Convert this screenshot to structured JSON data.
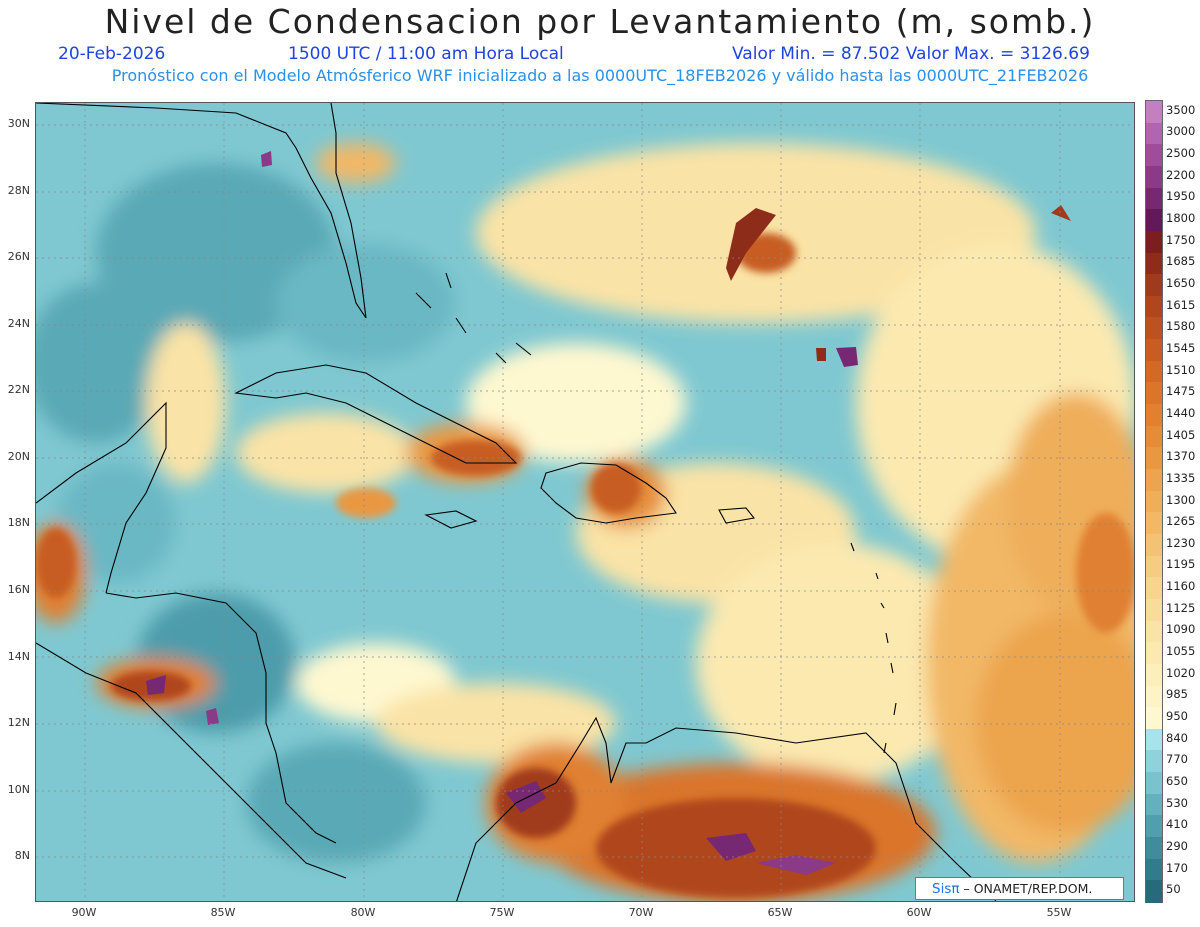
{
  "header": {
    "title": "Nivel de Condensacion por Levantamiento (m, somb.)",
    "date": "20-Feb-2026",
    "time": "1500 UTC / 11:00 am Hora Local",
    "stats": "Valor Min. = 87.502  Valor Max. = 3126.69",
    "model_info": "Pronóstico con el Modelo Atmósferico WRF inicializado a las 0000UTC_18FEB2026 y válido hasta las  0000UTC_21FEB2026"
  },
  "map": {
    "lat_labels": [
      "30N",
      "28N",
      "26N",
      "24N",
      "22N",
      "20N",
      "18N",
      "16N",
      "14N",
      "12N",
      "10N",
      "8N"
    ],
    "lon_labels": [
      "90W",
      "85W",
      "80W",
      "75W",
      "70W",
      "65W",
      "60W",
      "55W"
    ],
    "extent": {
      "lon_min": -92,
      "lon_max": -52.5,
      "lat_min": 6.6,
      "lat_max": 30.6
    },
    "credit_logo": "Sisπ",
    "credit_text": "– ONAMET/REP.DOM."
  },
  "colorbar": {
    "labels": [
      "3500",
      "3000",
      "2500",
      "2200",
      "1950",
      "1800",
      "1750",
      "1685",
      "1650",
      "1615",
      "1580",
      "1545",
      "1510",
      "1475",
      "1440",
      "1405",
      "1370",
      "1335",
      "1300",
      "1265",
      "1230",
      "1195",
      "1160",
      "1125",
      "1090",
      "1055",
      "1020",
      "985",
      "950",
      "840",
      "770",
      "650",
      "530",
      "410",
      "290",
      "170",
      "50"
    ],
    "colors": [
      "#c47ec2",
      "#b164b0",
      "#9e4c9b",
      "#8a3a86",
      "#772872",
      "#62185a",
      "#7a1e1e",
      "#8e2c1a",
      "#a03a1c",
      "#b0461e",
      "#bc5220",
      "#c75d22",
      "#d26a26",
      "#da752a",
      "#e08030",
      "#e58c38",
      "#e99842",
      "#eca44e",
      "#efae5a",
      "#f2b866",
      "#f4c274",
      "#f6cb82",
      "#f8d48e",
      "#f9dc9a",
      "#fae3a6",
      "#fbe9b0",
      "#fcefba",
      "#fdf3c4",
      "#fef8d0",
      "#a8e2ea",
      "#8fd2dc",
      "#79c2ce",
      "#64b0bf",
      "#519eae",
      "#408c9d",
      "#327b8c",
      "#266a7b"
    ]
  },
  "colors": {
    "ocean": "#7cc6cf",
    "coast": "#000000",
    "title": "#222222",
    "subtitle": "#1f44e0",
    "info": "#2a90e8"
  }
}
